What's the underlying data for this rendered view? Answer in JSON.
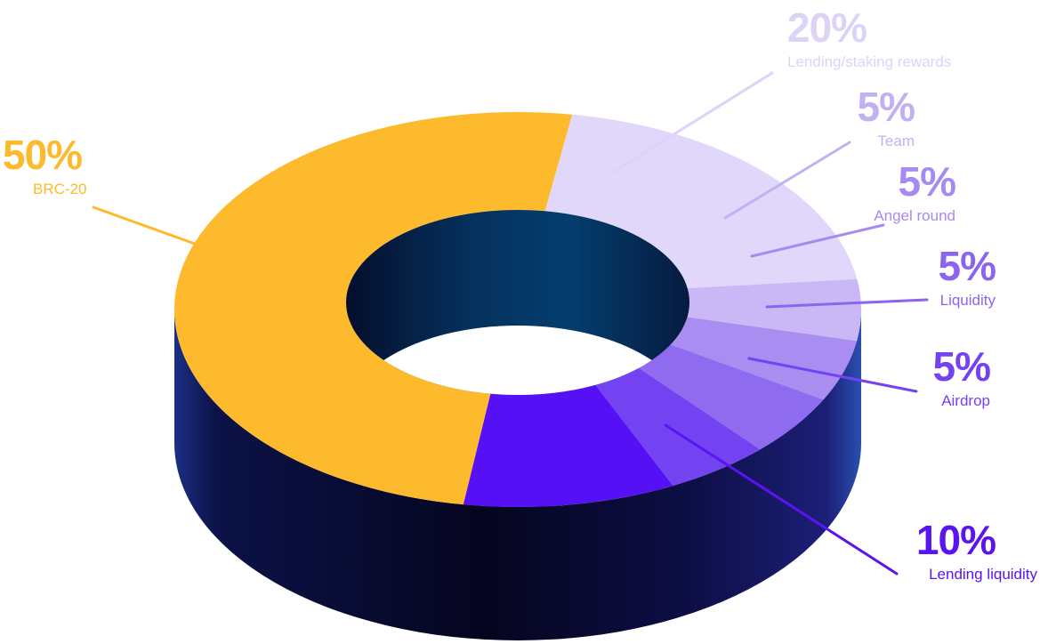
{
  "chart_data": {
    "type": "pie",
    "style": "3d-donut",
    "legend": "none",
    "slices": [
      {
        "label": "BRC-20",
        "value": 50,
        "display": "50%",
        "color": "#FDBA2D",
        "label_color": "#FDBA2D"
      },
      {
        "label": "Lending/staking rewards",
        "value": 20,
        "display": "20%",
        "color": "#E0D7FA",
        "label_color": "#DCD3F7"
      },
      {
        "label": "Team",
        "value": 5,
        "display": "5%",
        "color": "#CAB8F6",
        "label_color": "#C2B0F3"
      },
      {
        "label": "Angel round",
        "value": 5,
        "display": "5%",
        "color": "#A98DF1",
        "label_color": "#A68AF0"
      },
      {
        "label": "Liquidity",
        "value": 5,
        "display": "5%",
        "color": "#8F6BF0",
        "label_color": "#8B65F0"
      },
      {
        "label": "Airdrop",
        "value": 5,
        "display": "5%",
        "color": "#7343F2",
        "label_color": "#7442F2"
      },
      {
        "label": "Lending liquidity",
        "value": 10,
        "display": "10%",
        "color": "#5610F5",
        "label_color": "#5A14F2"
      }
    ],
    "colors": {
      "side_dark": "#07082A",
      "side_mid": "#10125A",
      "side_light": "#1F3A8E",
      "hole_dark": "#05193A",
      "hole_light": "#04406E"
    }
  }
}
